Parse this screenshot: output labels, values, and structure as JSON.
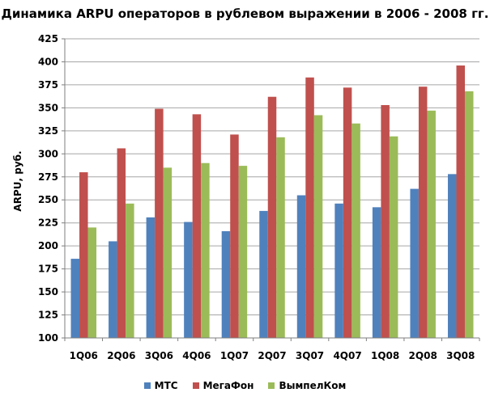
{
  "chart_data": {
    "type": "bar",
    "title": "Динамика ARPU операторов в рублевом выражении в 2006 - 2008 гг.",
    "xlabel": "",
    "ylabel": "ARPU, руб.",
    "ylim": [
      100,
      425
    ],
    "yticks": [
      100,
      125,
      150,
      175,
      200,
      225,
      250,
      275,
      300,
      325,
      350,
      375,
      400,
      425
    ],
    "grid": true,
    "legend_position": "bottom",
    "categories": [
      "1Q06",
      "2Q06",
      "3Q06",
      "4Q06",
      "1Q07",
      "2Q07",
      "3Q07",
      "4Q07",
      "1Q08",
      "2Q08",
      "3Q08"
    ],
    "series": [
      {
        "name": "МТС",
        "color": "#4f81bd",
        "values": [
          186,
          205,
          231,
          226,
          216,
          238,
          255,
          246,
          242,
          262,
          278
        ]
      },
      {
        "name": "МегаФон",
        "color": "#c0504d",
        "values": [
          280,
          306,
          349,
          343,
          321,
          362,
          383,
          372,
          353,
          373,
          396
        ]
      },
      {
        "name": "ВымпелКом",
        "color": "#9bbb59",
        "values": [
          220,
          246,
          285,
          290,
          287,
          318,
          342,
          333,
          319,
          347,
          368
        ]
      }
    ]
  }
}
